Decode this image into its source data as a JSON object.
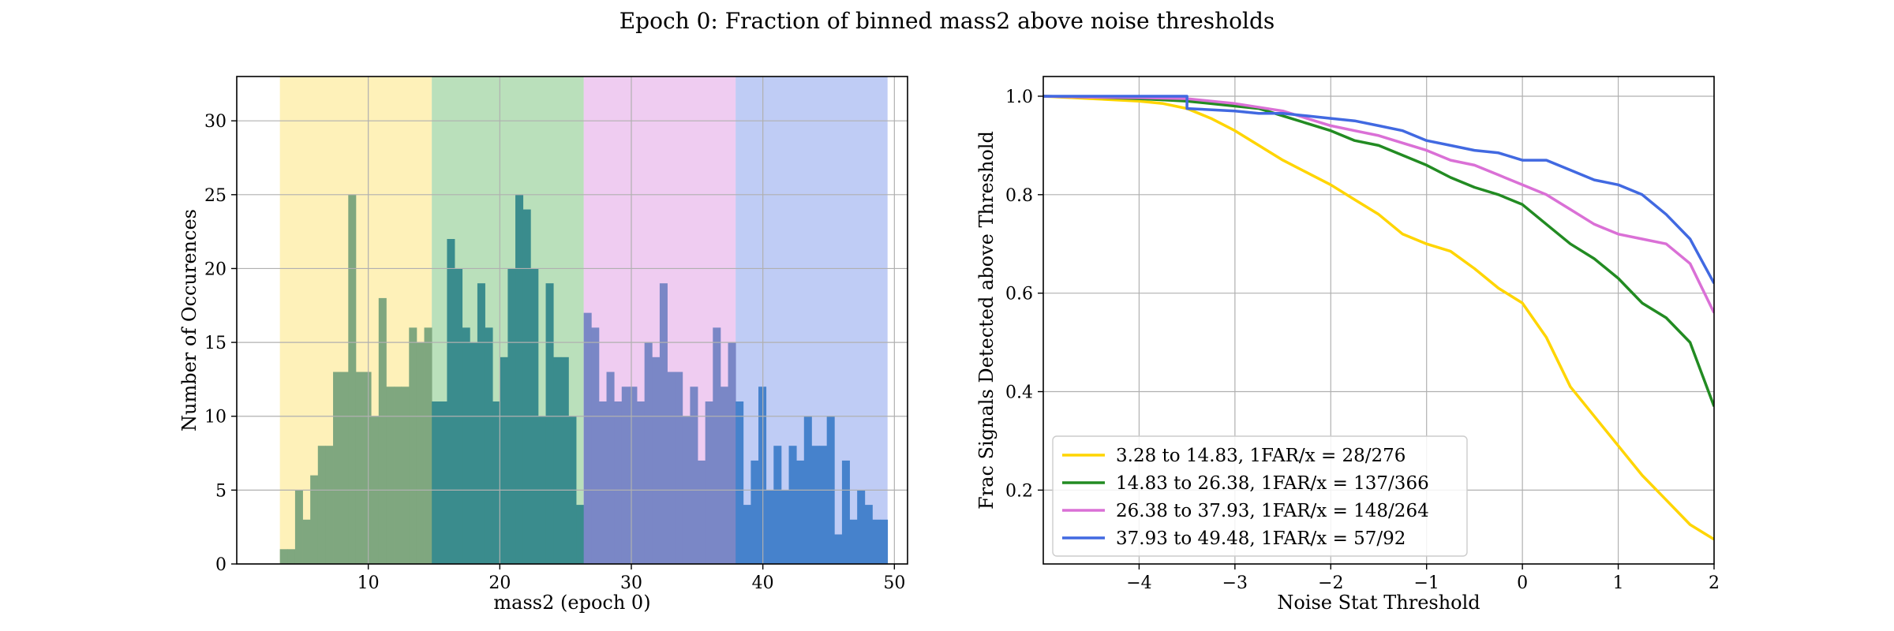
{
  "figure": {
    "suptitle": "Epoch 0: Fraction of binned mass2 above noise thresholds"
  },
  "chart_data": [
    {
      "type": "bar",
      "subtype": "histogram",
      "xlabel": "mass2 (epoch 0)",
      "ylabel": "Number of Occurences",
      "xlim": [
        0.0,
        51.0
      ],
      "ylim": [
        0,
        33
      ],
      "xticks": [
        10,
        20,
        30,
        40,
        50
      ],
      "yticks": [
        0,
        5,
        10,
        15,
        20,
        25,
        30
      ],
      "grid": true,
      "regions": [
        {
          "range": [
            3.28,
            14.83
          ],
          "color": "#fde680"
        },
        {
          "range": [
            14.83,
            26.38
          ],
          "color": "#81c784"
        },
        {
          "range": [
            26.38,
            37.93
          ],
          "color": "#e1a3e6"
        },
        {
          "range": [
            37.93,
            49.48
          ],
          "color": "#8aa3ec"
        }
      ],
      "bins": {
        "start": 3.28,
        "width": 0.5775,
        "region_bins": 20
      },
      "series": [
        {
          "color": "#7fa77f",
          "values": [
            1,
            1,
            5,
            3,
            6,
            8,
            8,
            13,
            13,
            25,
            13,
            13,
            10,
            18,
            12,
            12,
            12,
            16,
            15,
            16
          ]
        },
        {
          "color": "#3a8c8d",
          "values": [
            11,
            11,
            22,
            20,
            16,
            15,
            19,
            16,
            11,
            14,
            20,
            25,
            24,
            20,
            10,
            19,
            14,
            14,
            10,
            4
          ]
        },
        {
          "color": "#7a87c6",
          "values": [
            17,
            16,
            11,
            13,
            11,
            12,
            12,
            11,
            15,
            14,
            19,
            13,
            13,
            10,
            12,
            7,
            11,
            16,
            12,
            15
          ]
        },
        {
          "color": "#4682cc",
          "values": [
            11,
            4,
            7,
            12,
            5,
            8,
            5,
            8,
            7,
            10,
            8,
            8,
            10,
            2,
            7,
            3,
            5,
            4,
            3,
            3
          ]
        }
      ]
    },
    {
      "type": "line",
      "xlabel": "Noise Stat Threshold",
      "ylabel": "Frac Signals Detected above Threshold",
      "xlim": [
        -5.0,
        2.0
      ],
      "ylim": [
        0.05,
        1.04
      ],
      "xticks": [
        -4,
        -3,
        -2,
        -1,
        0,
        1,
        2
      ],
      "xtick_labels": [
        "−4",
        "−3",
        "−2",
        "−1",
        "0",
        "1",
        "2"
      ],
      "yticks": [
        0.2,
        0.4,
        0.6,
        0.8,
        1.0
      ],
      "ytick_labels": [
        "0.2",
        "0.4",
        "0.6",
        "0.8",
        "1.0"
      ],
      "grid": true,
      "legend_position": "lower-left",
      "series": [
        {
          "name": "3.28 to 14.83, 1FAR/x = 28/276",
          "color": "#ffd500",
          "points": [
            [
              -5,
              1.0
            ],
            [
              -4.5,
              0.995
            ],
            [
              -4,
              0.99
            ],
            [
              -3.75,
              0.985
            ],
            [
              -3.5,
              0.975
            ],
            [
              -3.25,
              0.955
            ],
            [
              -3,
              0.93
            ],
            [
              -2.75,
              0.9
            ],
            [
              -2.5,
              0.87
            ],
            [
              -2.25,
              0.845
            ],
            [
              -2,
              0.82
            ],
            [
              -1.75,
              0.79
            ],
            [
              -1.5,
              0.76
            ],
            [
              -1.25,
              0.72
            ],
            [
              -1,
              0.7
            ],
            [
              -0.75,
              0.685
            ],
            [
              -0.5,
              0.65
            ],
            [
              -0.25,
              0.61
            ],
            [
              0,
              0.58
            ],
            [
              0.25,
              0.51
            ],
            [
              0.5,
              0.41
            ],
            [
              0.75,
              0.35
            ],
            [
              1,
              0.29
            ],
            [
              1.25,
              0.23
            ],
            [
              1.5,
              0.18
            ],
            [
              1.75,
              0.13
            ],
            [
              2,
              0.1
            ]
          ]
        },
        {
          "name": "14.83 to 26.38, 1FAR/x = 137/366",
          "color": "#228b22",
          "points": [
            [
              -5,
              1.0
            ],
            [
              -4.5,
              0.998
            ],
            [
              -4,
              0.995
            ],
            [
              -3.5,
              0.99
            ],
            [
              -3,
              0.98
            ],
            [
              -2.75,
              0.975
            ],
            [
              -2.5,
              0.96
            ],
            [
              -2.25,
              0.945
            ],
            [
              -2,
              0.93
            ],
            [
              -1.75,
              0.91
            ],
            [
              -1.5,
              0.9
            ],
            [
              -1.25,
              0.88
            ],
            [
              -1,
              0.86
            ],
            [
              -0.75,
              0.835
            ],
            [
              -0.5,
              0.815
            ],
            [
              -0.25,
              0.8
            ],
            [
              0,
              0.78
            ],
            [
              0.25,
              0.74
            ],
            [
              0.5,
              0.7
            ],
            [
              0.75,
              0.67
            ],
            [
              1,
              0.63
            ],
            [
              1.25,
              0.58
            ],
            [
              1.5,
              0.55
            ],
            [
              1.75,
              0.5
            ],
            [
              2,
              0.37
            ]
          ]
        },
        {
          "name": "26.38 to 37.93, 1FAR/x = 148/264",
          "color": "#da70d6",
          "points": [
            [
              -5,
              1.0
            ],
            [
              -4.5,
              0.998
            ],
            [
              -4,
              0.997
            ],
            [
              -3.5,
              0.995
            ],
            [
              -3,
              0.985
            ],
            [
              -2.5,
              0.97
            ],
            [
              -2,
              0.94
            ],
            [
              -1.75,
              0.93
            ],
            [
              -1.5,
              0.92
            ],
            [
              -1.25,
              0.905
            ],
            [
              -1,
              0.89
            ],
            [
              -0.75,
              0.87
            ],
            [
              -0.5,
              0.86
            ],
            [
              -0.25,
              0.84
            ],
            [
              0,
              0.82
            ],
            [
              0.25,
              0.8
            ],
            [
              0.5,
              0.77
            ],
            [
              0.75,
              0.74
            ],
            [
              1,
              0.72
            ],
            [
              1.25,
              0.71
            ],
            [
              1.5,
              0.7
            ],
            [
              1.75,
              0.66
            ],
            [
              2,
              0.56
            ]
          ]
        },
        {
          "name": "37.93 to 49.48, 1FAR/x = 57/92",
          "color": "#4169e1",
          "points": [
            [
              -5,
              1.0
            ],
            [
              -4,
              1.0
            ],
            [
              -3.5,
              1.0
            ],
            [
              -3.5,
              0.975
            ],
            [
              -3,
              0.97
            ],
            [
              -2.75,
              0.965
            ],
            [
              -2.5,
              0.965
            ],
            [
              -2.25,
              0.96
            ],
            [
              -2,
              0.955
            ],
            [
              -1.75,
              0.95
            ],
            [
              -1.5,
              0.94
            ],
            [
              -1.25,
              0.93
            ],
            [
              -1,
              0.91
            ],
            [
              -0.75,
              0.9
            ],
            [
              -0.5,
              0.89
            ],
            [
              -0.25,
              0.885
            ],
            [
              0,
              0.87
            ],
            [
              0.25,
              0.87
            ],
            [
              0.5,
              0.85
            ],
            [
              0.75,
              0.83
            ],
            [
              1,
              0.82
            ],
            [
              1.25,
              0.8
            ],
            [
              1.5,
              0.76
            ],
            [
              1.75,
              0.71
            ],
            [
              2,
              0.62
            ]
          ]
        }
      ]
    }
  ]
}
